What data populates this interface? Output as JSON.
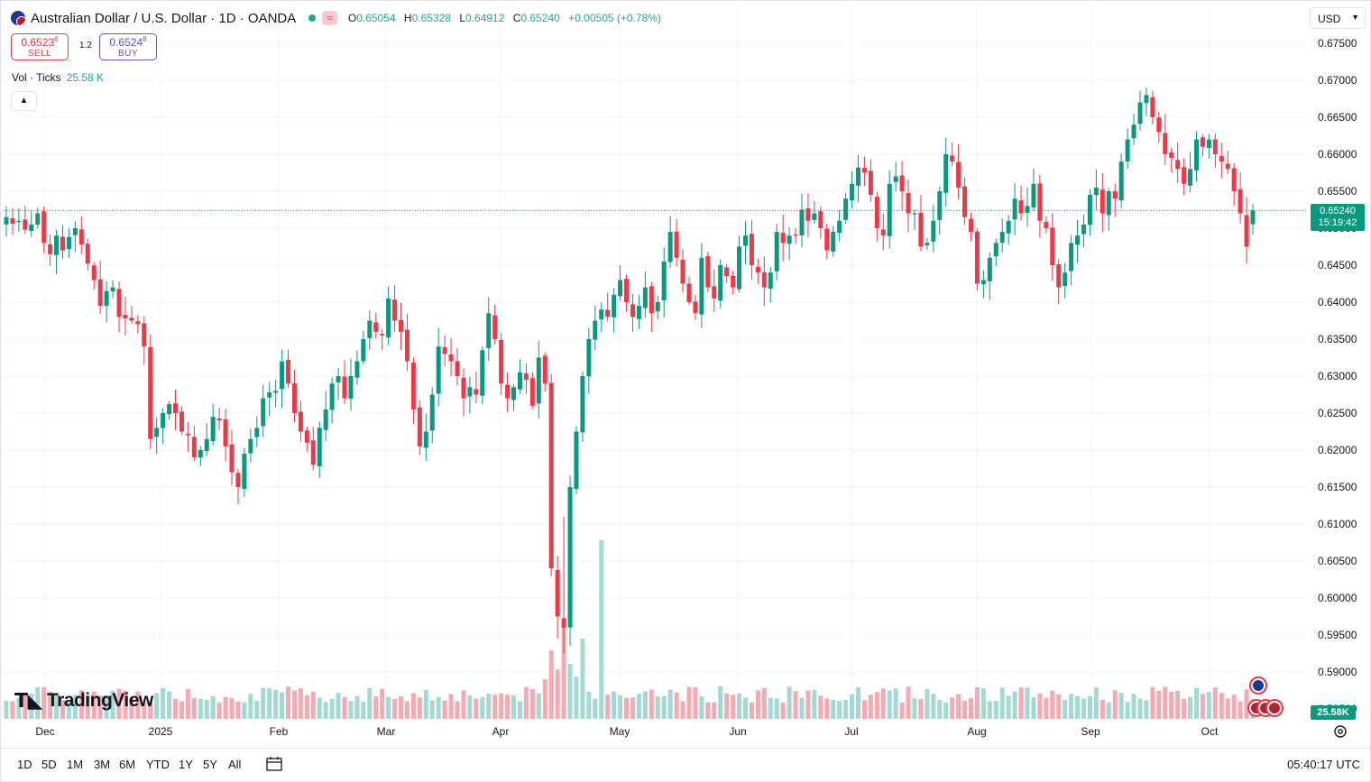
{
  "header": {
    "title": "Australian Dollar / U.S. Dollar · 1D · OANDA",
    "market_badge": "≈",
    "ohlc": [
      {
        "label": "O",
        "value": "0.65054"
      },
      {
        "label": "H",
        "value": "0.65328"
      },
      {
        "label": "L",
        "value": "0.64912"
      },
      {
        "label": "C",
        "value": "0.65240"
      }
    ],
    "change": "+0.00505 (+0.78%)"
  },
  "trade": {
    "sell_price": "0.6523",
    "sell_sup": "6",
    "sell_label": "SELL",
    "spread": "1.2",
    "buy_price": "0.6524",
    "buy_sup": "8",
    "buy_label": "BUY"
  },
  "volume_legend": {
    "label": "Vol · Ticks",
    "value": "25.58 K"
  },
  "currency_select": "USD",
  "last_price": {
    "price": "0.65240",
    "countdown": "15:19:42"
  },
  "volume_badge": "25.58K",
  "logo_text": "TradingView",
  "bottom_bar": {
    "ranges": [
      "1D",
      "5D",
      "1M",
      "3M",
      "6M",
      "YTD",
      "1Y",
      "5Y",
      "All"
    ],
    "clock": "05:40:17 UTC"
  },
  "colors": {
    "up": "#089981",
    "down": "#f23645",
    "vol_up": "#a3d9d3",
    "vol_down": "#f7a9b0",
    "grid": "#f0f3fa"
  },
  "chart_data": {
    "type": "candlestick",
    "symbol": "AUDUSD",
    "interval": "1D",
    "y_axis_ticks": [
      "0.67500",
      "0.67000",
      "0.66500",
      "0.66000",
      "0.65500",
      "0.65000",
      "0.64500",
      "0.64000",
      "0.63500",
      "0.63000",
      "0.62500",
      "0.62000",
      "0.61500",
      "0.61000",
      "0.60500",
      "0.60000",
      "0.59500",
      "0.59000",
      "0.58500"
    ],
    "ylim": [
      0.5845,
      0.6775
    ],
    "x_axis_ticks": [
      "Dec",
      "2025",
      "Feb",
      "Mar",
      "Apr",
      "May",
      "Jun",
      "Jul",
      "Aug",
      "Sep",
      "Oct"
    ],
    "approx_closes": [
      0.6515,
      0.6506,
      0.651,
      0.6498,
      0.6505,
      0.652,
      0.648,
      0.6465,
      0.649,
      0.647,
      0.6488,
      0.65,
      0.6478,
      0.6452,
      0.643,
      0.6395,
      0.6415,
      0.642,
      0.638,
      0.6378,
      0.6375,
      0.637,
      0.634,
      0.6215,
      0.623,
      0.625,
      0.6262,
      0.625,
      0.6225,
      0.622,
      0.619,
      0.62,
      0.6215,
      0.6245,
      0.624,
      0.6205,
      0.617,
      0.615,
      0.6195,
      0.6215,
      0.623,
      0.627,
      0.6278,
      0.628,
      0.632,
      0.629,
      0.625,
      0.6225,
      0.621,
      0.618,
      0.623,
      0.6255,
      0.629,
      0.63,
      0.627,
      0.63,
      0.632,
      0.635,
      0.6375,
      0.636,
      0.6355,
      0.6405,
      0.6375,
      0.636,
      0.632,
      0.6255,
      0.6205,
      0.6225,
      0.6275,
      0.634,
      0.633,
      0.632,
      0.63,
      0.627,
      0.6285,
      0.6275,
      0.6335,
      0.6385,
      0.635,
      0.629,
      0.627,
      0.6285,
      0.6305,
      0.6295,
      0.626,
      0.6325,
      0.629,
      0.604,
      0.5975,
      0.596,
      0.615,
      0.6225,
      0.63,
      0.635,
      0.6375,
      0.639,
      0.638,
      0.641,
      0.643,
      0.64,
      0.638,
      0.6395,
      0.642,
      0.6385,
      0.64,
      0.6455,
      0.6495,
      0.646,
      0.6425,
      0.64,
      0.6385,
      0.646,
      0.642,
      0.6405,
      0.645,
      0.6435,
      0.642,
      0.6475,
      0.649,
      0.645,
      0.644,
      0.642,
      0.644,
      0.6495,
      0.648,
      0.649,
      0.649,
      0.6525,
      0.651,
      0.652,
      0.65,
      0.647,
      0.6495,
      0.651,
      0.654,
      0.656,
      0.6582,
      0.6575,
      0.6545,
      0.65,
      0.649,
      0.656,
      0.657,
      0.655,
      0.652,
      0.652,
      0.6475,
      0.648,
      0.651,
      0.655,
      0.66,
      0.659,
      0.6555,
      0.6515,
      0.6495,
      0.6425,
      0.643,
      0.646,
      0.648,
      0.6495,
      0.651,
      0.654,
      0.652,
      0.653,
      0.656,
      0.651,
      0.65,
      0.645,
      0.642,
      0.644,
      0.648,
      0.649,
      0.6505,
      0.6545,
      0.6555,
      0.652,
      0.655,
      0.654,
      0.659,
      0.662,
      0.664,
      0.667,
      0.668,
      0.665,
      0.663,
      0.66,
      0.6595,
      0.658,
      0.656,
      0.658,
      0.662,
      0.661,
      0.662,
      0.66,
      0.659,
      0.658,
      0.655,
      0.652,
      0.6475,
      0.6524
    ]
  }
}
